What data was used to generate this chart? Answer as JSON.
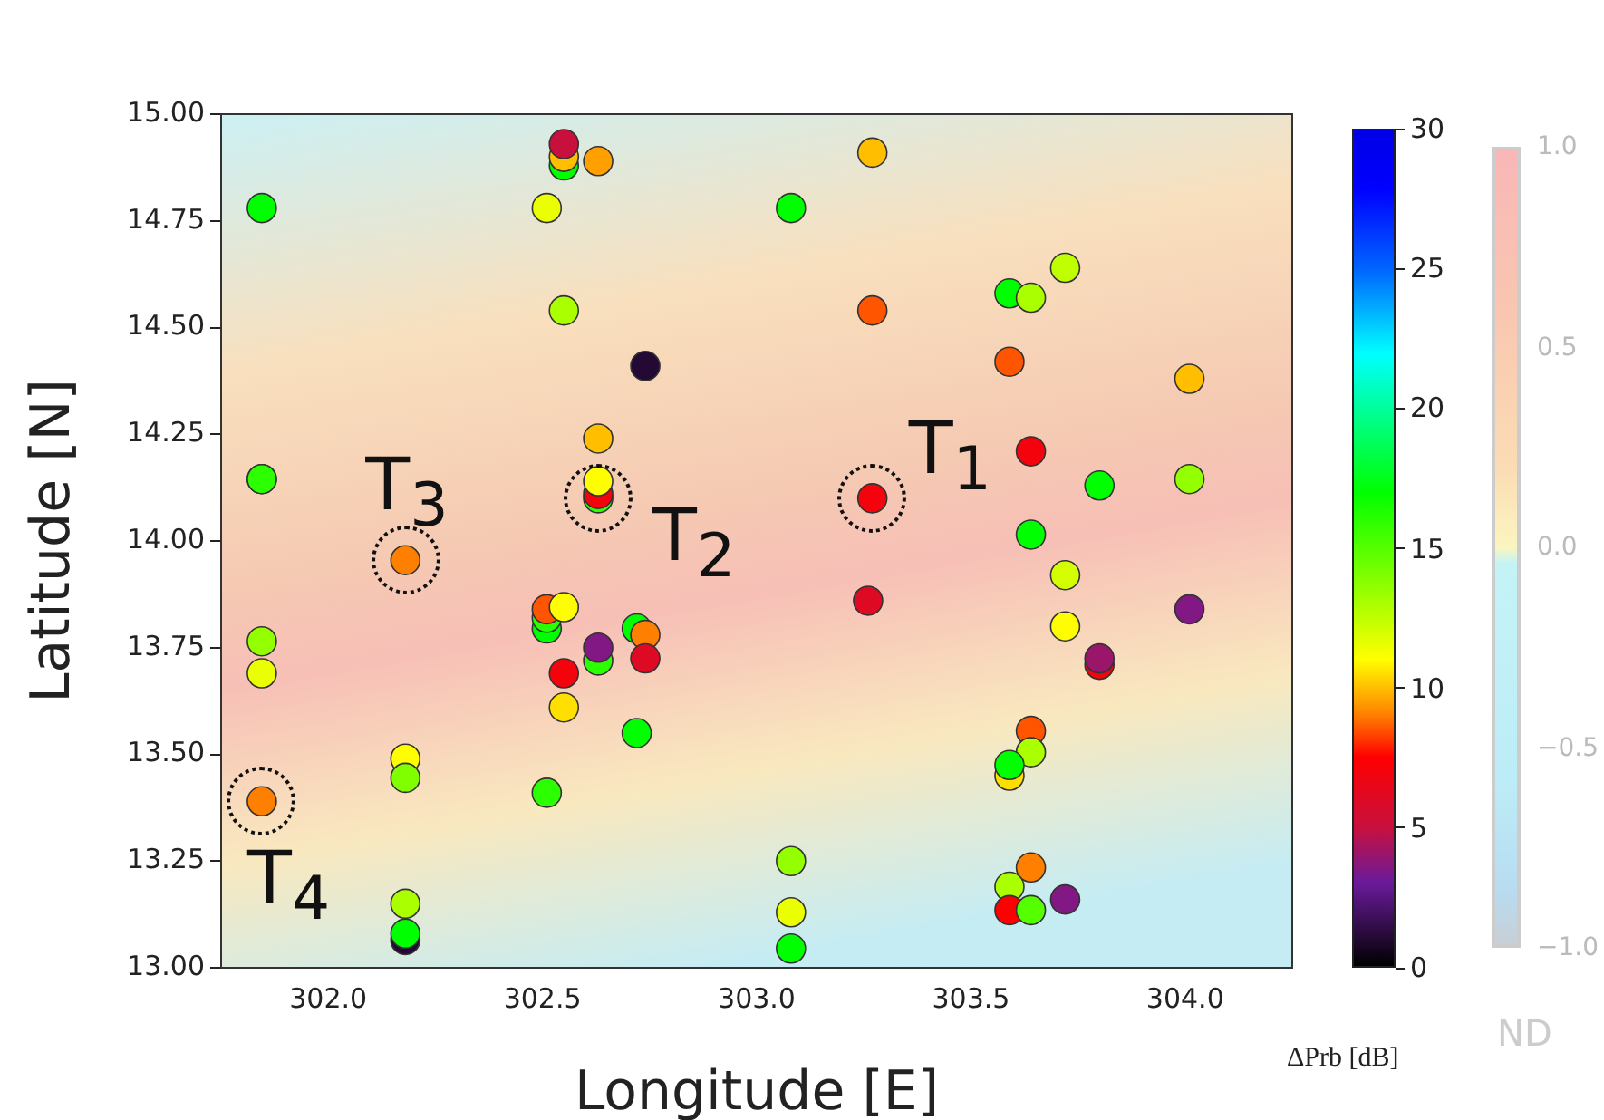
{
  "chart_data": {
    "type": "scatter",
    "xlabel": "Longitude [E]",
    "ylabel": "Latitude [N]",
    "clabel": "ΔPrb [dB]",
    "xlim": [
      301.75,
      304.25
    ],
    "xticks": [
      {
        "value": 302,
        "label": "302.0"
      },
      {
        "value": 302.5,
        "label": "302.5"
      },
      {
        "value": 303,
        "label": "303.0"
      },
      {
        "value": 303.5,
        "label": "303.5"
      },
      {
        "value": 304,
        "label": "304.0"
      }
    ],
    "ylim": [
      13,
      15
    ],
    "yticks": [
      {
        "value": 13,
        "label": "13.00"
      },
      {
        "value": 13.25,
        "label": "13.25"
      },
      {
        "value": 13.5,
        "label": "13.50"
      },
      {
        "value": 13.75,
        "label": "13.75"
      },
      {
        "value": 14,
        "label": "14.00"
      },
      {
        "value": 14.25,
        "label": "14.25"
      },
      {
        "value": 14.5,
        "label": "14.50"
      },
      {
        "value": 14.75,
        "label": "14.75"
      },
      {
        "value": 15,
        "label": "15.00"
      }
    ],
    "clim": [
      0,
      30
    ],
    "cticks": [
      0,
      5,
      10,
      15,
      20,
      25,
      30
    ],
    "grid": false,
    "legend": false,
    "marker": "circle",
    "series": [
      {
        "x": [
          301.845,
          301.845,
          302.55,
          302.55,
          302.55,
          302.63,
          302.51,
          302.55,
          302.74,
          302.63,
          302.63,
          302.63,
          302.63,
          301.845,
          302.18,
          303.08,
          303.27,
          303.27,
          303.59,
          303.64,
          303.72,
          303.59,
          304.01,
          303.64,
          303.27,
          303.8,
          304.01,
          303.64,
          301.845,
          301.845,
          301.845,
          302.18,
          302.18,
          302.18,
          302.18,
          302.18,
          302.51,
          302.51,
          302.51,
          302.55,
          302.63,
          302.63,
          302.72,
          302.74,
          302.74,
          302.55,
          302.55,
          302.72,
          302.51,
          303.72,
          303.26,
          304.01,
          303.72,
          303.8,
          303.8,
          303.64,
          303.64,
          303.59,
          303.59,
          303.08,
          303.08,
          303.08,
          303.64,
          303.59,
          303.59,
          303.64,
          303.72
        ],
        "values": [
          14.78,
          14.145,
          14.88,
          14.9,
          14.93,
          14.89,
          14.78,
          14.54,
          14.41,
          14.24,
          14.1,
          14.11,
          14.14,
          14.145,
          13.955,
          14.78,
          14.91,
          14.54,
          14.58,
          14.57,
          14.64,
          14.42,
          14.38,
          14.21,
          14.1,
          14.13,
          14.145,
          14.015,
          13.765,
          13.69,
          13.39,
          13.49,
          13.445,
          13.15,
          13.065,
          13.08,
          13.795,
          13.82,
          13.84,
          13.845,
          13.72,
          13.75,
          13.795,
          13.78,
          13.725,
          13.69,
          13.61,
          13.55,
          13.41,
          13.92,
          13.86,
          13.84,
          13.8,
          13.71,
          13.725,
          13.555,
          13.505,
          13.45,
          13.475,
          13.25,
          13.13,
          13.045,
          13.235,
          13.19,
          13.135,
          13.135,
          13.16
        ],
        "cvalues": [
          17,
          16,
          17,
          10,
          5,
          9.5,
          11.5,
          13,
          1,
          10,
          16,
          7,
          11,
          16,
          9,
          17,
          10,
          8.5,
          17,
          13,
          12.5,
          8.5,
          10,
          7,
          7,
          17,
          13.5,
          17,
          13.5,
          11.5,
          9,
          11,
          14,
          13,
          1,
          17,
          17,
          16,
          8.5,
          11,
          16,
          3.5,
          17,
          9,
          6,
          7,
          10.5,
          17,
          16,
          12,
          6,
          3.5,
          11,
          7,
          4,
          8.5,
          13,
          10.5,
          17,
          13.5,
          11.5,
          17,
          9,
          13,
          7.5,
          15,
          3.5
        ]
      }
    ],
    "annotations": [
      {
        "text": "T$_{1}$",
        "x": 303.27,
        "y": 14.1
      },
      {
        "text": "T$_{2}$",
        "x": 302.63,
        "y": 14.1
      },
      {
        "text": "T$_{3}$",
        "x": 302.18,
        "y": 13.955
      },
      {
        "text": "T$_{4}$",
        "x": 301.845,
        "y": 13.39
      },
      "1.0",
      "0.5",
      "0.0",
      "−0.5",
      "−1.0",
      "ND"
    ]
  }
}
